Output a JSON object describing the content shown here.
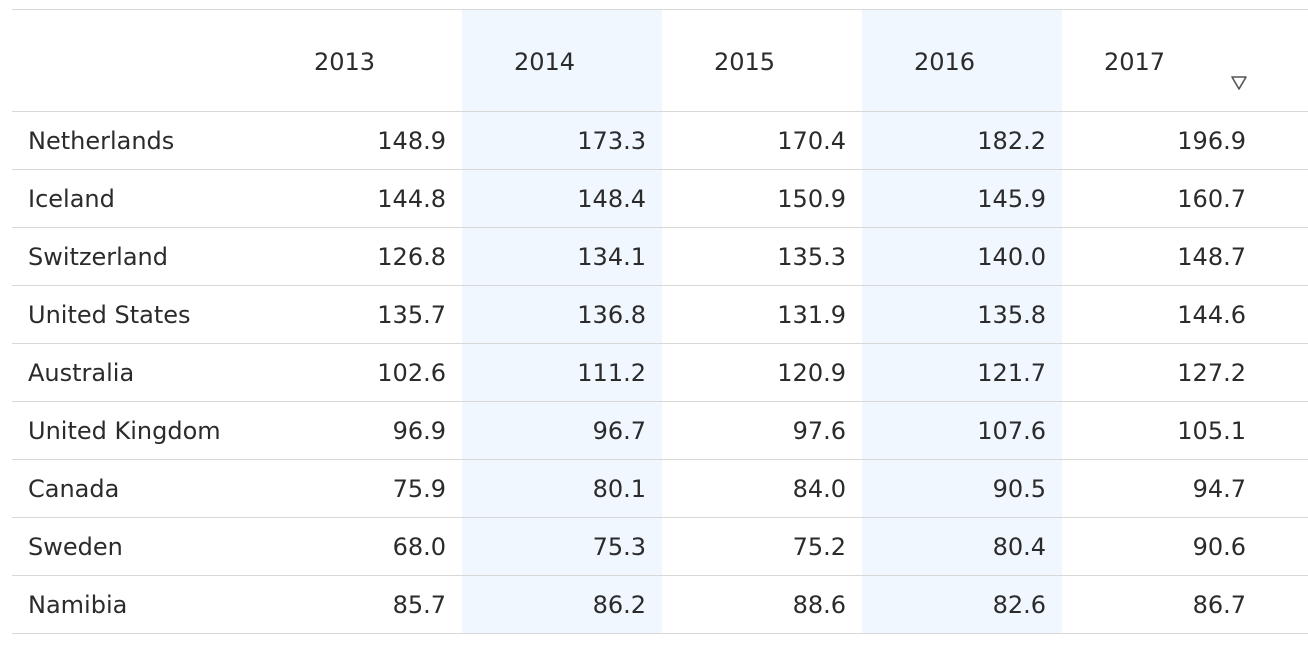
{
  "table": {
    "columns": [
      "",
      "2013",
      "2014",
      "2015",
      "2016",
      "2017"
    ],
    "sort": {
      "column": "2017",
      "direction": "descending",
      "icon": "sort-down-icon"
    },
    "rows": [
      {
        "country": "Netherlands",
        "values": [
          "148.9",
          "173.3",
          "170.4",
          "182.2",
          "196.9"
        ]
      },
      {
        "country": "Iceland",
        "values": [
          "144.8",
          "148.4",
          "150.9",
          "145.9",
          "160.7"
        ]
      },
      {
        "country": "Switzerland",
        "values": [
          "126.8",
          "134.1",
          "135.3",
          "140.0",
          "148.7"
        ]
      },
      {
        "country": "United States",
        "values": [
          "135.7",
          "136.8",
          "131.9",
          "135.8",
          "144.6"
        ]
      },
      {
        "country": "Australia",
        "values": [
          "102.6",
          "111.2",
          "120.9",
          "121.7",
          "127.2"
        ]
      },
      {
        "country": "United Kingdom",
        "values": [
          "96.9",
          "96.7",
          "97.6",
          "107.6",
          "105.1"
        ]
      },
      {
        "country": "Canada",
        "values": [
          "75.9",
          "80.1",
          "84.0",
          "90.5",
          "94.7"
        ]
      },
      {
        "country": "Sweden",
        "values": [
          "68.0",
          "75.3",
          "75.2",
          "80.4",
          "90.6"
        ]
      },
      {
        "country": "Namibia",
        "values": [
          "85.7",
          "86.2",
          "88.6",
          "82.6",
          "86.7"
        ]
      }
    ]
  },
  "colors": {
    "shaded_column": "#f0f7ff",
    "divider": "#d8d8d8",
    "text": "#2b2b2b"
  }
}
